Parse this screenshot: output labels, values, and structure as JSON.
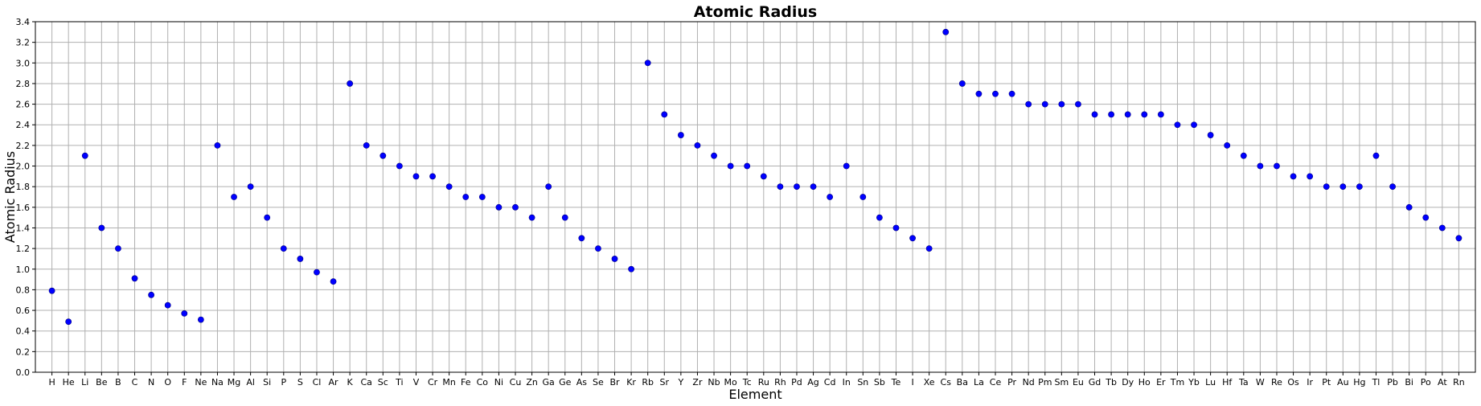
{
  "chart_data": {
    "type": "scatter",
    "title": "Atomic Radius",
    "xlabel": "Element",
    "ylabel": "Atomic Radius",
    "ylim": [
      0,
      3.4
    ],
    "y_ticks": [
      "0.0",
      "0.2",
      "0.4",
      "0.6",
      "0.8",
      "1.0",
      "1.2",
      "1.4",
      "1.6",
      "1.8",
      "2.0",
      "2.2",
      "2.4",
      "2.6",
      "2.8",
      "3.0",
      "3.2",
      "3.4"
    ],
    "grid": true,
    "marker_color": "#0000ff",
    "categories": [
      "H",
      "He",
      "Li",
      "Be",
      "B",
      "C",
      "N",
      "O",
      "F",
      "Ne",
      "Na",
      "Mg",
      "Al",
      "Si",
      "P",
      "S",
      "Cl",
      "Ar",
      "K",
      "Ca",
      "Sc",
      "Ti",
      "V",
      "Cr",
      "Mn",
      "Fe",
      "Co",
      "Ni",
      "Cu",
      "Zn",
      "Ga",
      "Ge",
      "As",
      "Se",
      "Br",
      "Kr",
      "Rb",
      "Sr",
      "Y",
      "Zr",
      "Nb",
      "Mo",
      "Tc",
      "Ru",
      "Rh",
      "Pd",
      "Ag",
      "Cd",
      "In",
      "Sn",
      "Sb",
      "Te",
      "I",
      "Xe",
      "Cs",
      "Ba",
      "La",
      "Ce",
      "Pr",
      "Nd",
      "Pm",
      "Sm",
      "Eu",
      "Gd",
      "Tb",
      "Dy",
      "Ho",
      "Er",
      "Tm",
      "Yb",
      "Lu",
      "Hf",
      "Ta",
      "W",
      "Re",
      "Os",
      "Ir",
      "Pt",
      "Au",
      "Hg",
      "Tl",
      "Pb",
      "Bi",
      "Po",
      "At",
      "Rn"
    ],
    "values": [
      0.79,
      0.49,
      2.1,
      1.4,
      1.2,
      0.91,
      0.75,
      0.65,
      0.57,
      0.51,
      2.2,
      1.7,
      1.8,
      1.5,
      1.2,
      1.1,
      0.97,
      0.88,
      2.8,
      2.2,
      2.1,
      2.0,
      1.9,
      1.9,
      1.8,
      1.7,
      1.7,
      1.6,
      1.6,
      1.5,
      1.8,
      1.5,
      1.3,
      1.2,
      1.1,
      1.0,
      3.0,
      2.5,
      2.3,
      2.2,
      2.1,
      2.0,
      2.0,
      1.9,
      1.8,
      1.8,
      1.8,
      1.7,
      2.0,
      1.7,
      1.5,
      1.4,
      1.3,
      1.2,
      3.3,
      2.8,
      2.7,
      2.7,
      2.7,
      2.6,
      2.6,
      2.6,
      2.6,
      2.5,
      2.5,
      2.5,
      2.5,
      2.5,
      2.4,
      2.4,
      2.3,
      2.2,
      2.1,
      2.0,
      2.0,
      1.9,
      1.9,
      1.8,
      1.8,
      1.8,
      2.1,
      1.8,
      1.6,
      1.5,
      1.4,
      1.3
    ]
  }
}
